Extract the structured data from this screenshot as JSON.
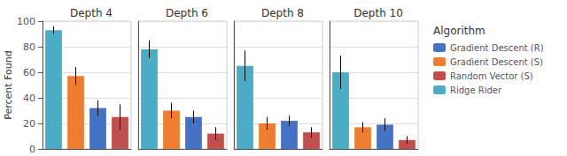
{
  "chart_data": [
    {
      "type": "bar",
      "title": "Depth 4",
      "ylabel": "Percent Found",
      "tick_labels": "y",
      "grid": true,
      "categories": [
        null
      ],
      "ylim": [
        0,
        100
      ],
      "yticks": [
        0,
        20,
        40,
        60,
        80,
        100
      ],
      "series": [
        {
          "name": "Ridge Rider",
          "color": "#4BACC6",
          "values": [
            93
          ],
          "errors": [
            3
          ]
        },
        {
          "name": "Gradient Descent (S)",
          "color": "#ED7D31",
          "values": [
            57
          ],
          "errors": [
            7
          ]
        },
        {
          "name": "Gradient Descent (R)",
          "color": "#4472C4",
          "values": [
            32
          ],
          "errors": [
            6
          ]
        },
        {
          "name": "Random Vector (S)",
          "color": "#C0504D",
          "values": [
            25
          ],
          "errors": [
            10
          ]
        }
      ]
    },
    {
      "type": "bar",
      "title": "Depth 6",
      "tick_labels": false,
      "grid": true,
      "categories": [
        null
      ],
      "ylim": [
        0,
        100
      ],
      "yticks": [
        0,
        20,
        40,
        60,
        80,
        100
      ],
      "series": [
        {
          "name": "Ridge Rider",
          "color": "#4BACC6",
          "values": [
            78
          ],
          "errors": [
            7
          ]
        },
        {
          "name": "Gradient Descent (S)",
          "color": "#ED7D31",
          "values": [
            30
          ],
          "errors": [
            6
          ]
        },
        {
          "name": "Gradient Descent (R)",
          "color": "#4472C4",
          "values": [
            25
          ],
          "errors": [
            5
          ]
        },
        {
          "name": "Random Vector (S)",
          "color": "#C0504D",
          "values": [
            12
          ],
          "errors": [
            5
          ]
        }
      ]
    },
    {
      "type": "bar",
      "title": "Depth 8",
      "tick_labels": false,
      "grid": true,
      "categories": [
        null
      ],
      "ylim": [
        0,
        100
      ],
      "yticks": [
        0,
        20,
        40,
        60,
        80,
        100
      ],
      "series": [
        {
          "name": "Ridge Rider",
          "color": "#4BACC6",
          "values": [
            65
          ],
          "errors": [
            12
          ]
        },
        {
          "name": "Gradient Descent (S)",
          "color": "#ED7D31",
          "values": [
            20
          ],
          "errors": [
            5
          ]
        },
        {
          "name": "Gradient Descent (R)",
          "color": "#4472C4",
          "values": [
            22
          ],
          "errors": [
            4
          ]
        },
        {
          "name": "Random Vector (S)",
          "color": "#C0504D",
          "values": [
            13
          ],
          "errors": [
            4
          ]
        }
      ]
    },
    {
      "type": "bar",
      "title": "Depth 10",
      "tick_labels": false,
      "grid": true,
      "legend": "right",
      "legend_title": "Algorithm",
      "legend_order": [
        "Gradient Descent (R)",
        "Gradient Descent (S)",
        "Random Vector (S)",
        "Ridge Rider"
      ],
      "categories": [
        null
      ],
      "ylim": [
        0,
        100
      ],
      "yticks": [
        0,
        20,
        40,
        60,
        80,
        100
      ],
      "series": [
        {
          "name": "Ridge Rider",
          "color": "#4BACC6",
          "values": [
            60
          ],
          "errors": [
            13
          ]
        },
        {
          "name": "Gradient Descent (S)",
          "color": "#ED7D31",
          "values": [
            17
          ],
          "errors": [
            4
          ]
        },
        {
          "name": "Gradient Descent (R)",
          "color": "#4472C4",
          "values": [
            19
          ],
          "errors": [
            5
          ]
        },
        {
          "name": "Random Vector (S)",
          "color": "#C0504D",
          "values": [
            7
          ],
          "errors": [
            3
          ]
        }
      ]
    }
  ]
}
